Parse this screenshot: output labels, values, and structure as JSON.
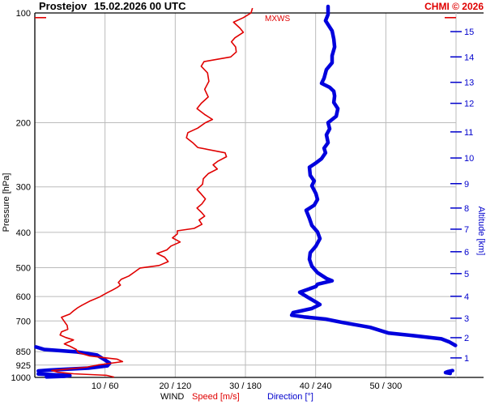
{
  "header": {
    "station": "Prostejov",
    "datetime": "15.02.2026 00 UTC",
    "copyright": "CHMI © 2026"
  },
  "axes": {
    "left_label": "Pressure [hPa]",
    "right_label": "Altitude [km]",
    "caption_wind": "WIND",
    "caption_speed": "Speed [m/s]",
    "caption_direction": "Direction [°]",
    "pressure_ticks": [
      100,
      200,
      300,
      400,
      500,
      600,
      700,
      850,
      925,
      1000
    ],
    "x_ticks": [
      {
        "speed": 10,
        "dir": 60,
        "label": "10 / 60"
      },
      {
        "speed": 20,
        "dir": 120,
        "label": "20 / 120"
      },
      {
        "speed": 30,
        "dir": 180,
        "label": "30 / 180"
      },
      {
        "speed": 40,
        "dir": 240,
        "label": "40 / 240"
      },
      {
        "speed": 50,
        "dir": 300,
        "label": "50 / 300"
      }
    ],
    "altitude_ticks": [
      {
        "km": 1,
        "p": 884
      },
      {
        "km": 2,
        "p": 778
      },
      {
        "km": 3,
        "p": 688
      },
      {
        "km": 4,
        "p": 599
      },
      {
        "km": 5,
        "p": 519
      },
      {
        "km": 6,
        "p": 452
      },
      {
        "km": 7,
        "p": 392
      },
      {
        "km": 8,
        "p": 343
      },
      {
        "km": 9,
        "p": 294
      },
      {
        "km": 10,
        "p": 250
      },
      {
        "km": 11,
        "p": 212
      },
      {
        "km": 12,
        "p": 177
      },
      {
        "km": 13,
        "p": 155
      },
      {
        "km": 14,
        "p": 132
      },
      {
        "km": 15,
        "p": 112.5
      }
    ]
  },
  "annotations": {
    "mxws_label": "MXWS",
    "mxws_pressure": 103
  },
  "colors": {
    "speed_line": "#e00000",
    "direction_line": "#0000dd",
    "grid": "#bbbbbb",
    "frame": "#000000",
    "blue_text": "#0000cc"
  },
  "chart_data": {
    "type": "line",
    "title": "Prostejov 15.02.2026 00 UTC vertical wind profile",
    "x_axis": {
      "speed_range_ms": [
        0,
        60
      ],
      "direction_range_deg": [
        0,
        360
      ]
    },
    "y_axis": {
      "pressure_range_hpa": [
        100,
        1000
      ],
      "scale": "log",
      "inverted": true
    },
    "legend_position": "none",
    "grid": true,
    "series": [
      {
        "name": "wind_speed",
        "units": "m/s",
        "color": "#e00000",
        "points": [
          [
            97,
            31.0
          ],
          [
            100,
            30.8
          ],
          [
            103,
            29.7
          ],
          [
            106,
            28.3
          ],
          [
            110,
            29.2
          ],
          [
            113,
            29.7
          ],
          [
            117,
            28.5
          ],
          [
            120,
            28.0
          ],
          [
            124,
            28.6
          ],
          [
            128,
            28.7
          ],
          [
            132,
            27.9
          ],
          [
            136,
            24.1
          ],
          [
            140,
            23.7
          ],
          [
            146,
            24.6
          ],
          [
            154,
            24.8
          ],
          [
            162,
            24.2
          ],
          [
            170,
            24.7
          ],
          [
            177,
            23.7
          ],
          [
            183,
            23.1
          ],
          [
            190,
            24.2
          ],
          [
            196,
            25.3
          ],
          [
            200,
            24.3
          ],
          [
            207,
            23.2
          ],
          [
            213,
            21.8
          ],
          [
            220,
            21.6
          ],
          [
            227,
            22.5
          ],
          [
            234,
            23.2
          ],
          [
            242,
            27.1
          ],
          [
            248,
            27.3
          ],
          [
            255,
            26.1
          ],
          [
            261,
            25.4
          ],
          [
            268,
            26.0
          ],
          [
            276,
            24.7
          ],
          [
            285,
            24.0
          ],
          [
            295,
            23.9
          ],
          [
            305,
            23.1
          ],
          [
            314,
            23.7
          ],
          [
            324,
            24.3
          ],
          [
            334,
            23.8
          ],
          [
            343,
            23.1
          ],
          [
            352,
            23.7
          ],
          [
            361,
            24.2
          ],
          [
            370,
            23.4
          ],
          [
            380,
            23.8
          ],
          [
            390,
            22.7
          ],
          [
            396,
            20.3
          ],
          [
            404,
            20.3
          ],
          [
            414,
            19.6
          ],
          [
            425,
            20.7
          ],
          [
            436,
            19.4
          ],
          [
            447,
            18.8
          ],
          [
            457,
            17.4
          ],
          [
            468,
            18.5
          ],
          [
            481,
            19.0
          ],
          [
            493,
            17.7
          ],
          [
            501,
            15.0
          ],
          [
            514,
            14.2
          ],
          [
            527,
            13.4
          ],
          [
            538,
            12.3
          ],
          [
            549,
            11.9
          ],
          [
            558,
            12.2
          ],
          [
            567,
            11.7
          ],
          [
            575,
            11.1
          ],
          [
            587,
            10.2
          ],
          [
            602,
            9.2
          ],
          [
            618,
            7.8
          ],
          [
            634,
            6.7
          ],
          [
            644,
            6.1
          ],
          [
            657,
            5.5
          ],
          [
            670,
            5.0
          ],
          [
            684,
            3.8
          ],
          [
            702,
            4.2
          ],
          [
            720,
            4.6
          ],
          [
            738,
            4.7
          ],
          [
            750,
            3.8
          ],
          [
            765,
            3.6
          ],
          [
            777,
            4.4
          ],
          [
            789,
            5.5
          ],
          [
            801,
            4.7
          ],
          [
            809,
            4.2
          ],
          [
            821,
            5.0
          ],
          [
            838,
            5.9
          ],
          [
            855,
            6.2
          ],
          [
            873,
            7.8
          ],
          [
            891,
            11.7
          ],
          [
            905,
            12.5
          ],
          [
            924,
            9.0
          ],
          [
            938,
            7.3
          ],
          [
            957,
            2.4
          ],
          [
            967,
            3.2
          ],
          [
            977,
            5.5
          ],
          [
            987,
            10.2
          ],
          [
            998,
            11.3
          ]
        ]
      },
      {
        "name": "wind_direction",
        "units": "deg",
        "color": "#0000dd",
        "segments": [
          [
            [
              96,
              250.6
            ],
            [
              101,
              250.6
            ],
            [
              105,
              248.5
            ],
            [
              112,
              254.1
            ],
            [
              118,
              255.5
            ],
            [
              124,
              256.2
            ],
            [
              131,
              254.1
            ],
            [
              137,
              254.1
            ],
            [
              143,
              249.2
            ],
            [
              151,
              247.2
            ],
            [
              156,
              245.1
            ],
            [
              160,
              252.0
            ],
            [
              164,
              255.5
            ],
            [
              169,
              256.2
            ],
            [
              176,
              255.5
            ],
            [
              183,
              259.0
            ],
            [
              192,
              257.6
            ],
            [
              200,
              250.6
            ],
            [
              208,
              252.0
            ],
            [
              216,
              249.2
            ],
            [
              227,
              250.6
            ],
            [
              235,
              247.2
            ],
            [
              242,
              248.5
            ],
            [
              251,
              245.1
            ],
            [
              258,
              240.2
            ],
            [
              265,
              234.7
            ],
            [
              279,
              235.4
            ],
            [
              289,
              238.8
            ],
            [
              298,
              236.8
            ],
            [
              313,
              240.2
            ],
            [
              325,
              241.6
            ],
            [
              337,
              238.8
            ],
            [
              348,
              231.9
            ],
            [
              366,
              234.7
            ],
            [
              383,
              236.8
            ],
            [
              399,
              241.6
            ],
            [
              416,
              243.7
            ],
            [
              436,
              240.2
            ],
            [
              455,
              235.4
            ],
            [
              474,
              234.7
            ],
            [
              495,
              236.8
            ],
            [
              516,
              241.6
            ],
            [
              535,
              249.2
            ],
            [
              543,
              254.1
            ],
            [
              555,
              241.6
            ],
            [
              563,
              240.2
            ],
            [
              584,
              226.4
            ],
            [
              599,
              231.9
            ],
            [
              608,
              235.4
            ],
            [
              621,
              240.2
            ],
            [
              631,
              243.7
            ],
            [
              647,
              236.8
            ],
            [
              664,
              220.8
            ],
            [
              675,
              219.5
            ],
            [
              682,
              229.8
            ],
            [
              692,
              248.5
            ],
            [
              707,
              263.1
            ],
            [
              729,
              286.6
            ],
            [
              756,
              302.5
            ],
            [
              768,
              323.3
            ],
            [
              784,
              347.5
            ],
            [
              800,
              354.5
            ],
            [
              817,
              359.5
            ]
          ],
          [
            [
              825,
              1.0
            ],
            [
              838,
              8.0
            ],
            [
              851,
              36.0
            ],
            [
              868,
              53.0
            ],
            [
              896,
              60.0
            ],
            [
              914,
              64.0
            ],
            [
              929,
              62.0
            ],
            [
              943,
              46.0
            ],
            [
              950,
              25.0
            ],
            [
              955,
              12.0
            ],
            [
              960,
              3.0
            ]
          ],
          [
            [
              958,
              357.0
            ],
            [
              964,
              353.0
            ],
            [
              970,
              351.0
            ],
            [
              975,
              355.0
            ]
          ],
          [
            [
              978,
              3.0
            ],
            [
              983,
              15.0
            ],
            [
              988,
              30.0
            ],
            [
              993,
              25.0
            ],
            [
              997,
              10.0
            ]
          ]
        ]
      }
    ]
  }
}
